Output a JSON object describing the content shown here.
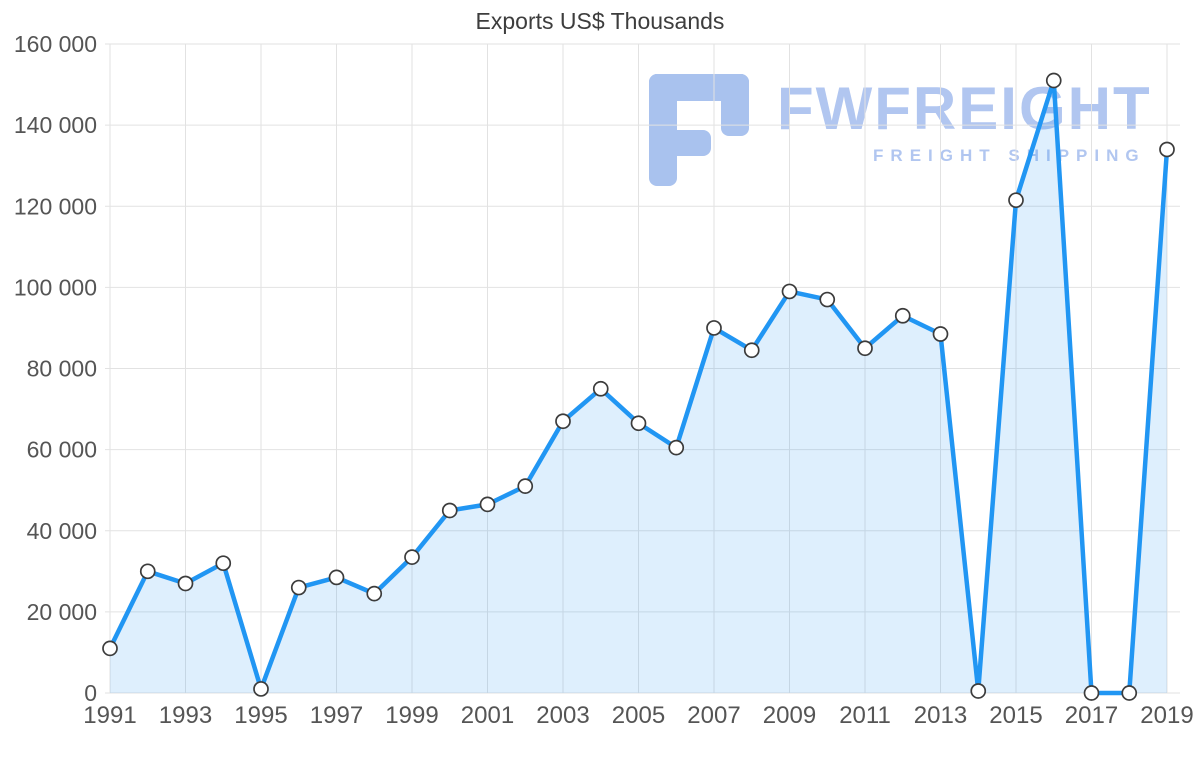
{
  "title": "Exports US$ Thousands",
  "watermark": {
    "brand": "FWFREIGHT",
    "tagline": "FREIGHT SHIPPING",
    "color": "#b1c6f0",
    "icon_color": "#a9c2ee",
    "icon_name": "fwfreight-logo-icon"
  },
  "chart_data": {
    "type": "area",
    "title": "Exports US$ Thousands",
    "x": [
      1991,
      1992,
      1993,
      1994,
      1995,
      1996,
      1997,
      1998,
      1999,
      2000,
      2001,
      2002,
      2003,
      2004,
      2005,
      2006,
      2007,
      2008,
      2009,
      2010,
      2011,
      2012,
      2013,
      2014,
      2015,
      2016,
      2017,
      2018,
      2019
    ],
    "values": [
      11000,
      30000,
      27000,
      32000,
      1000,
      26000,
      28500,
      24500,
      33500,
      45000,
      46500,
      51000,
      67000,
      75000,
      66500,
      60500,
      90000,
      84500,
      99000,
      97000,
      85000,
      93000,
      88500,
      500,
      121500,
      151000,
      0,
      0,
      134000
    ],
    "ylim": [
      0,
      160000
    ],
    "ytick_step": 20000,
    "ytick_labels": [
      "0",
      "20 000",
      "40 000",
      "60 000",
      "80 000",
      "100 000",
      "120 000",
      "140 000",
      "160 000"
    ],
    "xtick_labels": [
      "1991",
      "1993",
      "1995",
      "1997",
      "1999",
      "2001",
      "2003",
      "2005",
      "2007",
      "2009",
      "2011",
      "2013",
      "2015",
      "2017",
      "2019"
    ],
    "xlabel": "",
    "ylabel": "",
    "grid": true,
    "legend": "none",
    "markers": true,
    "colors": {
      "line": "#2196f3",
      "fill": "rgba(33,150,243,0.15)",
      "marker_fill": "#ffffff",
      "marker_stroke": "#3c3c3c",
      "grid": "#e2e2e2",
      "tick_text": "#555555"
    }
  }
}
